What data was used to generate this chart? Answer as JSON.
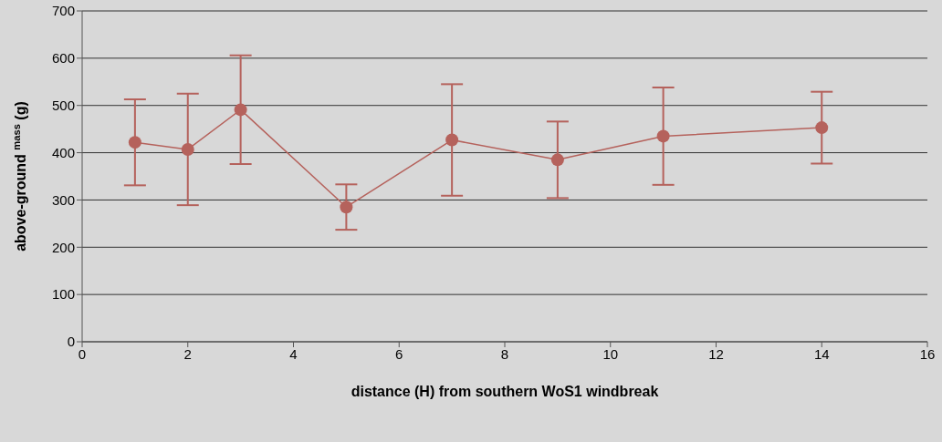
{
  "chart_data": {
    "type": "line",
    "xlabel": "distance (H) from southern WoS1 windbreak",
    "ylabel": "above-ground $^{mass}$ (g)",
    "x": [
      1,
      2,
      3,
      5,
      7,
      9,
      11,
      14
    ],
    "series": [
      {
        "color": "#b5625c",
        "values": [
          422,
          407,
          491,
          285,
          427,
          385,
          435,
          453
        ],
        "errors": [
          91,
          118,
          115,
          48,
          118,
          81,
          103,
          76
        ]
      }
    ],
    "xlim": [
      0,
      16
    ],
    "xticks": [
      0,
      2,
      4,
      6,
      8,
      10,
      12,
      14,
      16
    ],
    "ylim": [
      0,
      700
    ],
    "yticks": [
      0,
      100,
      200,
      300,
      400,
      500,
      600,
      700
    ],
    "grid": "y",
    "marker": "circle",
    "line_style": "solid"
  }
}
